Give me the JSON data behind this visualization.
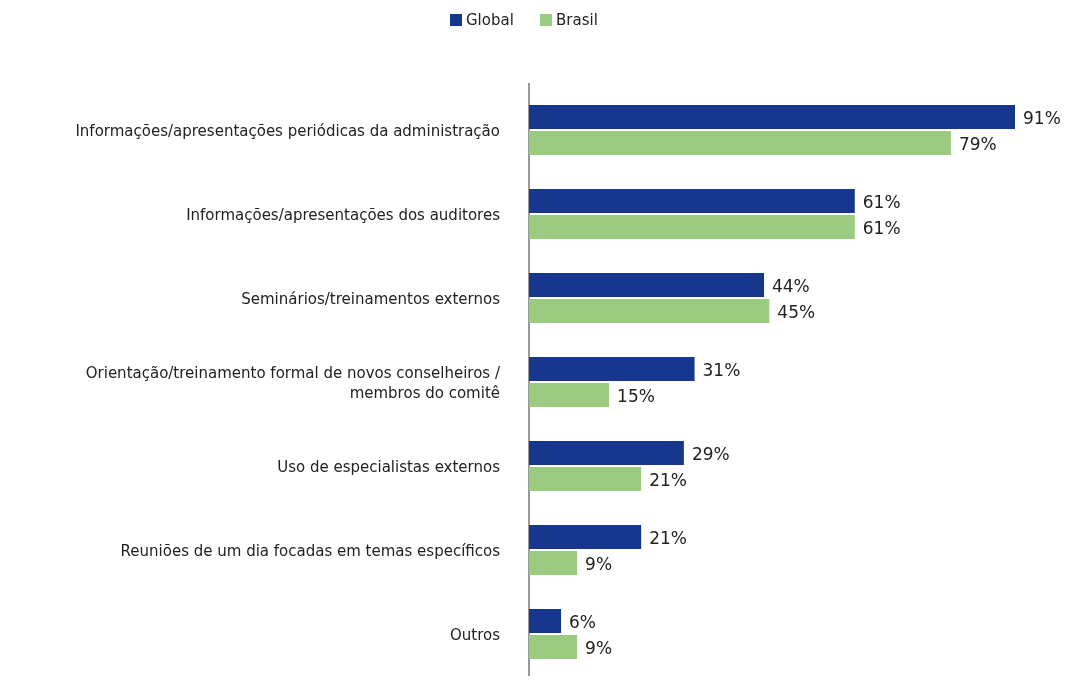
{
  "chart_data": {
    "type": "bar",
    "orientation": "horizontal",
    "legend": "top",
    "categories": [
      "Informações/apresentações periódicas da administração",
      "Informações/apresentações dos auditores",
      "Seminários/treinamentos externos",
      "Orientação/treinamento formal de novos conselheiros / membros do comitê",
      "Uso de especialistas externos",
      "Reuniões de um dia focadas em temas específicos",
      "Outros"
    ],
    "series": [
      {
        "name": "Global",
        "color": "#17378f",
        "values": [
          91,
          61,
          44,
          31,
          29,
          21,
          6
        ],
        "value_labels": [
          "91%",
          "61%",
          "44%",
          "31%",
          "29%",
          "21%",
          "6%"
        ]
      },
      {
        "name": "Brasil",
        "color": "#9bcb80",
        "values": [
          79,
          61,
          45,
          15,
          21,
          9,
          9
        ],
        "value_labels": [
          "79%",
          "61%",
          "45%",
          "15%",
          "21%",
          "9%",
          "9%"
        ]
      }
    ]
  }
}
